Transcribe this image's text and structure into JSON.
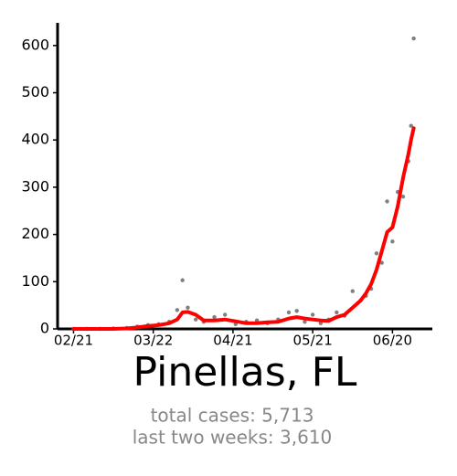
{
  "chart_data": {
    "type": "line",
    "title": "Pinellas, FL",
    "annotations": [
      "total cases: 5,713",
      "last two weeks: 3,610"
    ],
    "x": [
      "02/21",
      "02/26",
      "03/02",
      "03/07",
      "03/12",
      "03/16",
      "03/20",
      "03/24",
      "03/28",
      "03/31",
      "04/02",
      "04/04",
      "04/07",
      "04/10",
      "04/14",
      "04/18",
      "04/22",
      "04/26",
      "04/30",
      "05/04",
      "05/08",
      "05/12",
      "05/15",
      "05/18",
      "05/21",
      "05/24",
      "05/27",
      "05/30",
      "06/02",
      "06/05",
      "06/08",
      "06/10",
      "06/12",
      "06/14",
      "06/16",
      "06/18",
      "06/20",
      "06/22",
      "06/24",
      "06/26",
      "06/27",
      "06/28"
    ],
    "series": [
      {
        "type": "scatter",
        "color": "#808080",
        "values": [
          0,
          0,
          0,
          1,
          2,
          5,
          8,
          10,
          15,
          40,
          103,
          45,
          20,
          15,
          25,
          30,
          10,
          15,
          18,
          12,
          20,
          35,
          38,
          15,
          30,
          12,
          20,
          35,
          28,
          80,
          60,
          70,
          85,
          160,
          140,
          270,
          185,
          290,
          280,
          355,
          430,
          615
        ]
      },
      {
        "type": "line",
        "color": "#ff0000",
        "values": [
          0,
          0,
          0,
          0,
          1,
          3,
          6,
          8,
          12,
          20,
          35,
          36,
          30,
          18,
          18,
          20,
          16,
          12,
          12,
          14,
          15,
          22,
          25,
          22,
          20,
          18,
          17,
          25,
          30,
          45,
          60,
          75,
          95,
          125,
          165,
          205,
          215,
          260,
          320,
          370,
          400,
          425
        ]
      }
    ],
    "xlim": [
      "02/15",
      "07/05"
    ],
    "xticks": [
      "02/21",
      "03/22",
      "04/21",
      "05/21",
      "06/20"
    ],
    "ylim": [
      0,
      648
    ],
    "yticks": [
      0,
      100,
      200,
      300,
      400,
      500,
      600
    ],
    "grid": false
  }
}
